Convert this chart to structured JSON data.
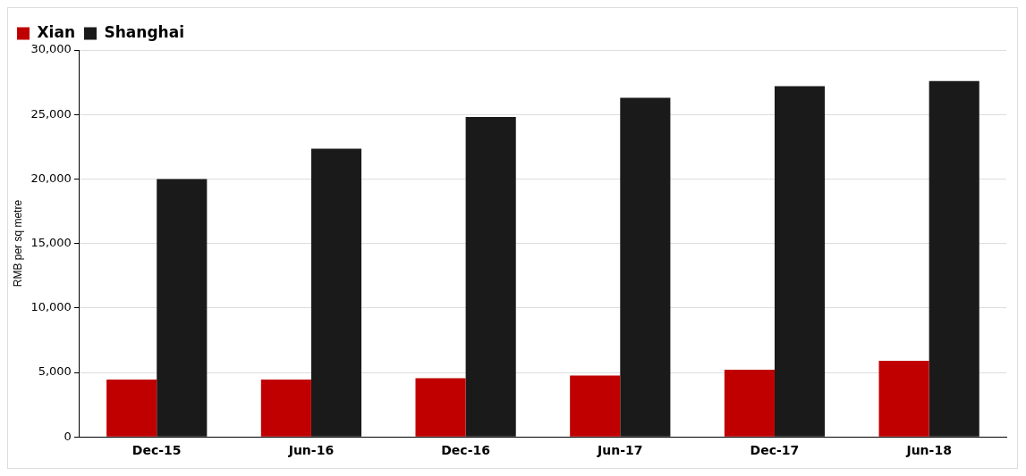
{
  "chart_data": {
    "type": "bar",
    "ylabel": "RMB per sq metre",
    "categories": [
      "Dec-15",
      "Jun-16",
      "Dec-16",
      "Jun-17",
      "Dec-17",
      "Jun-18"
    ],
    "series": [
      {
        "name": "Xian",
        "color": "#c00000",
        "values": [
          4450,
          4450,
          4550,
          4750,
          5200,
          5900
        ]
      },
      {
        "name": "Shanghai",
        "color": "#1a1a1a",
        "values": [
          20000,
          22350,
          24800,
          26300,
          27200,
          27600
        ]
      }
    ],
    "ylim": [
      0,
      30000
    ],
    "yticks": [
      {
        "value": 0,
        "label": "0"
      },
      {
        "value": 5000,
        "label": "5,000"
      },
      {
        "value": 10000,
        "label": "10,000"
      },
      {
        "value": 15000,
        "label": "15,000"
      },
      {
        "value": 20000,
        "label": "20,000"
      },
      {
        "value": 25000,
        "label": "25,000"
      },
      {
        "value": 30000,
        "label": "30,000"
      }
    ],
    "grid": "y",
    "legend": "top left"
  }
}
